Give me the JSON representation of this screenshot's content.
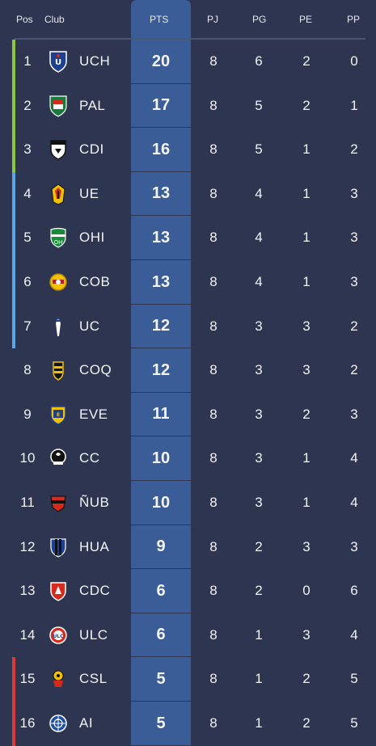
{
  "headers": {
    "pos": "Pos",
    "club": "Club",
    "pts": "PTS",
    "pj": "PJ",
    "pg": "PG",
    "pe": "PE",
    "pp": "PP"
  },
  "colors": {
    "background": "#2d3550",
    "pts_column": "#3b5d97",
    "zone_green": "#8cc63f",
    "zone_blue": "#5aa5e6",
    "zone_red": "#d93a3a"
  },
  "rows": [
    {
      "pos": "1",
      "abbr": "UCH",
      "pts": "20",
      "pj": "8",
      "pg": "6",
      "pe": "2",
      "pp": "0",
      "zone": "green",
      "crest": "uch-crest-icon"
    },
    {
      "pos": "2",
      "abbr": "PAL",
      "pts": "17",
      "pj": "8",
      "pg": "5",
      "pe": "2",
      "pp": "1",
      "zone": "green",
      "crest": "pal-crest-icon"
    },
    {
      "pos": "3",
      "abbr": "CDI",
      "pts": "16",
      "pj": "8",
      "pg": "5",
      "pe": "1",
      "pp": "2",
      "zone": "green",
      "crest": "cdi-crest-icon"
    },
    {
      "pos": "4",
      "abbr": "UE",
      "pts": "13",
      "pj": "8",
      "pg": "4",
      "pe": "1",
      "pp": "3",
      "zone": "blue",
      "crest": "ue-crest-icon"
    },
    {
      "pos": "5",
      "abbr": "OHI",
      "pts": "13",
      "pj": "8",
      "pg": "4",
      "pe": "1",
      "pp": "3",
      "zone": "blue",
      "crest": "ohi-crest-icon"
    },
    {
      "pos": "6",
      "abbr": "COB",
      "pts": "13",
      "pj": "8",
      "pg": "4",
      "pe": "1",
      "pp": "3",
      "zone": "blue",
      "crest": "cob-crest-icon"
    },
    {
      "pos": "7",
      "abbr": "UC",
      "pts": "12",
      "pj": "8",
      "pg": "3",
      "pe": "3",
      "pp": "2",
      "zone": "blue",
      "crest": "uc-crest-icon"
    },
    {
      "pos": "8",
      "abbr": "COQ",
      "pts": "12",
      "pj": "8",
      "pg": "3",
      "pe": "3",
      "pp": "2",
      "zone": "none",
      "crest": "coq-crest-icon"
    },
    {
      "pos": "9",
      "abbr": "EVE",
      "pts": "11",
      "pj": "8",
      "pg": "3",
      "pe": "2",
      "pp": "3",
      "zone": "none",
      "crest": "eve-crest-icon"
    },
    {
      "pos": "10",
      "abbr": "CC",
      "pts": "10",
      "pj": "8",
      "pg": "3",
      "pe": "1",
      "pp": "4",
      "zone": "none",
      "crest": "cc-crest-icon"
    },
    {
      "pos": "11",
      "abbr": "ÑUB",
      "pts": "10",
      "pj": "8",
      "pg": "3",
      "pe": "1",
      "pp": "4",
      "zone": "none",
      "crest": "nub-crest-icon"
    },
    {
      "pos": "12",
      "abbr": "HUA",
      "pts": "9",
      "pj": "8",
      "pg": "2",
      "pe": "3",
      "pp": "3",
      "zone": "none",
      "crest": "hua-crest-icon"
    },
    {
      "pos": "13",
      "abbr": "CDC",
      "pts": "6",
      "pj": "8",
      "pg": "2",
      "pe": "0",
      "pp": "6",
      "zone": "none",
      "crest": "cdc-crest-icon"
    },
    {
      "pos": "14",
      "abbr": "ULC",
      "pts": "6",
      "pj": "8",
      "pg": "1",
      "pe": "3",
      "pp": "4",
      "zone": "none",
      "crest": "ulc-crest-icon"
    },
    {
      "pos": "15",
      "abbr": "CSL",
      "pts": "5",
      "pj": "8",
      "pg": "1",
      "pe": "2",
      "pp": "5",
      "zone": "red",
      "crest": "csl-crest-icon"
    },
    {
      "pos": "16",
      "abbr": "AI",
      "pts": "5",
      "pj": "8",
      "pg": "1",
      "pe": "2",
      "pp": "5",
      "zone": "red",
      "crest": "ai-crest-icon"
    }
  ]
}
